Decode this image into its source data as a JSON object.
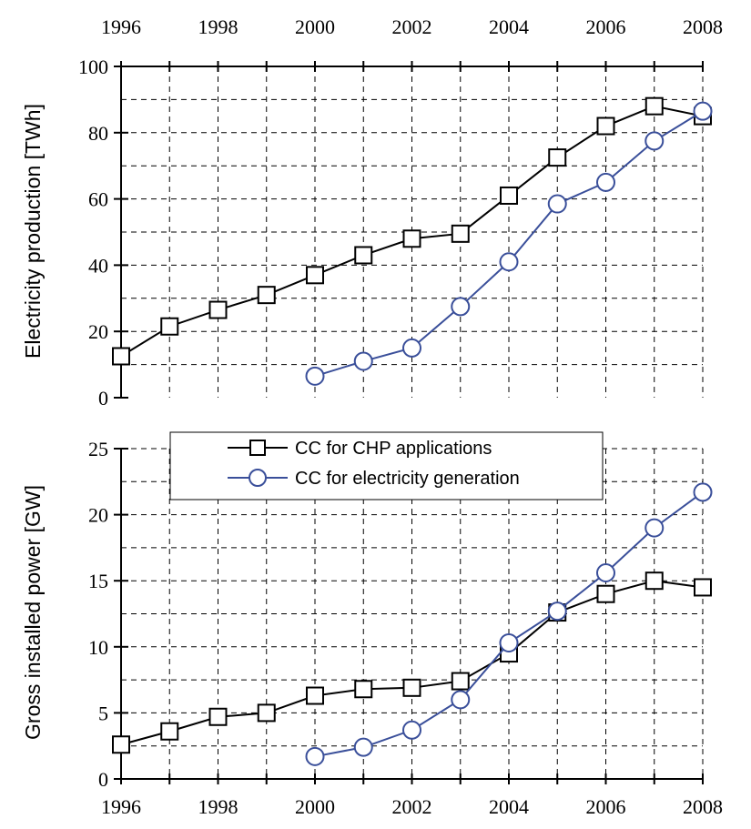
{
  "chart_data": [
    {
      "type": "line",
      "title": "",
      "xlabel": "",
      "ylabel": "Electricity production [TWh]",
      "x": [
        1996,
        1997,
        1998,
        1999,
        2000,
        2001,
        2002,
        2003,
        2004,
        2005,
        2006,
        2007,
        2008
      ],
      "xlim": [
        1996,
        2008
      ],
      "ylim": [
        0,
        100
      ],
      "x_tick_labels": [
        "1996",
        "1998",
        "2000",
        "2002",
        "2004",
        "2006",
        "2008"
      ],
      "y_tick_labels": [
        "0",
        "20",
        "40",
        "60",
        "80",
        "100"
      ],
      "x_axis_position": "top",
      "grid": true,
      "series": [
        {
          "name": "CC for CHP applications",
          "marker": "square",
          "color": "#000000",
          "values": [
            12.5,
            21.5,
            26.5,
            31,
            37,
            43,
            48,
            49.5,
            61,
            72.5,
            82,
            88,
            85
          ]
        },
        {
          "name": "CC for electricity generation",
          "marker": "circle",
          "color": "#3a4f9a",
          "values": [
            null,
            null,
            null,
            null,
            6.5,
            11,
            15,
            27.5,
            41,
            58.5,
            65,
            77.5,
            86.5
          ]
        }
      ]
    },
    {
      "type": "line",
      "title": "",
      "xlabel": "",
      "ylabel": "Gross installed power [GW]",
      "x": [
        1996,
        1997,
        1998,
        1999,
        2000,
        2001,
        2002,
        2003,
        2004,
        2005,
        2006,
        2007,
        2008
      ],
      "xlim": [
        1996,
        2008
      ],
      "ylim": [
        0,
        25
      ],
      "x_tick_labels": [
        "1996",
        "1998",
        "2000",
        "2002",
        "2004",
        "2006",
        "2008"
      ],
      "y_tick_labels": [
        "0",
        "5",
        "10",
        "15",
        "20",
        "25"
      ],
      "x_axis_position": "bottom",
      "grid": true,
      "legend": {
        "placement": "top-center",
        "entries": [
          "CC for CHP applications",
          "CC for electricity generation"
        ]
      },
      "series": [
        {
          "name": "CC for CHP applications",
          "marker": "square",
          "color": "#000000",
          "values": [
            2.6,
            3.6,
            4.7,
            5.0,
            6.3,
            6.8,
            6.9,
            7.4,
            9.5,
            12.6,
            14.0,
            15.0,
            14.5
          ]
        },
        {
          "name": "CC for electricity generation",
          "marker": "circle",
          "color": "#3a4f9a",
          "values": [
            null,
            null,
            null,
            null,
            1.7,
            2.4,
            3.7,
            6.0,
            10.3,
            12.7,
            15.6,
            19.0,
            21.7
          ]
        }
      ]
    }
  ]
}
